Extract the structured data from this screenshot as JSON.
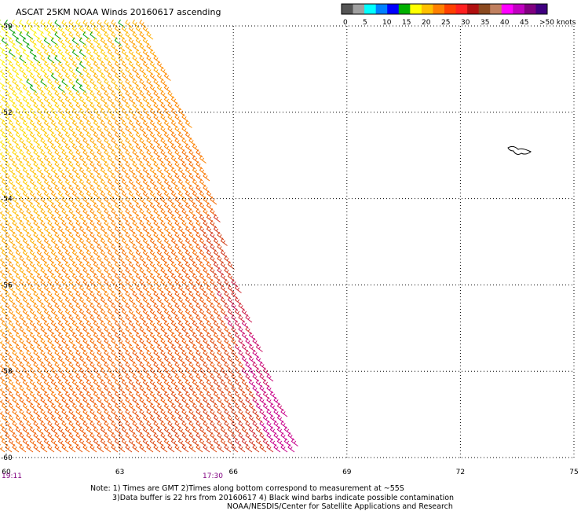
{
  "title": "ASCAT 25KM NOAA Winds 20160617 ascending",
  "colorbar": {
    "colors": [
      "#555555",
      "#a0a0a0",
      "#00ffff",
      "#0080ff",
      "#0000ff",
      "#00b000",
      "#ffff00",
      "#ffc000",
      "#ff8000",
      "#ff4000",
      "#ff2020",
      "#b01010",
      "#8b4a20",
      "#c08060",
      "#ff00ff",
      "#c000c0",
      "#800080",
      "#400080"
    ],
    "labels": [
      "0",
      "5",
      "10",
      "15",
      "20",
      "25",
      "30",
      "35",
      "40",
      "45",
      ">50 knots"
    ]
  },
  "notes": [
    "Note: 1) Times are GMT 2)Times along bottom correspond to measurement at ~55S",
    "3)Data buffer is 22 hrs from 20160617 4) Black wind barbs indicate possible contamination",
    "NOAA/NESDIS/Center for Satellite Applications and Research"
  ],
  "times": [
    "19:11",
    "17:30"
  ],
  "chart_data": {
    "type": "scatter",
    "title": "ASCAT 25KM NOAA Winds 20160617 ascending",
    "xlabel": "",
    "ylabel": "",
    "x_ticks": [
      "60",
      "63",
      "66",
      "69",
      "72",
      "75"
    ],
    "y_ticks": [
      "-50",
      "-52",
      "-54",
      "-56",
      "-58",
      "-60"
    ],
    "xlim": [
      60,
      75
    ],
    "ylim": [
      -60,
      -50
    ],
    "grid": true,
    "swath_boundary": [
      [
        63.8,
        -50
      ],
      [
        65.3,
        -53
      ],
      [
        66.2,
        -56
      ],
      [
        67.9,
        -60
      ],
      [
        60,
        -60
      ],
      [
        60,
        -50
      ]
    ],
    "wind_speed_range_knots": [
      15,
      45
    ],
    "units": "knots"
  }
}
